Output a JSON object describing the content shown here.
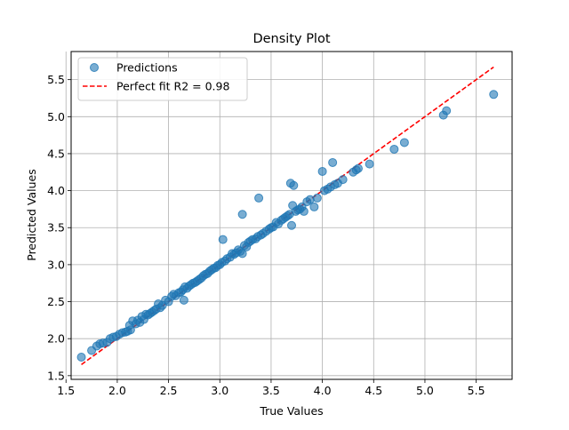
{
  "chart_data": {
    "type": "scatter",
    "title": "Density Plot",
    "xlabel": "True Values",
    "ylabel": "Predicted Values",
    "xlim": [
      1.55,
      5.85
    ],
    "ylim": [
      1.45,
      5.88
    ],
    "grid": true,
    "legend_placement": "top-left",
    "xticks": [
      "1.5",
      "2.0",
      "2.5",
      "3.0",
      "3.5",
      "4.0",
      "4.5",
      "5.0",
      "5.5"
    ],
    "yticks": [
      "1.5",
      "2.0",
      "2.5",
      "3.0",
      "3.5",
      "4.0",
      "4.5",
      "5.0",
      "5.5"
    ],
    "series": [
      {
        "name": "Predictions",
        "kind": "scatter",
        "color": "#1f77b4",
        "x": [
          1.65,
          1.75,
          1.8,
          1.83,
          1.86,
          1.9,
          1.93,
          1.96,
          1.99,
          2.02,
          2.05,
          2.08,
          2.1,
          2.12,
          2.13,
          2.15,
          2.18,
          2.2,
          2.22,
          2.24,
          2.26,
          2.28,
          2.3,
          2.32,
          2.34,
          2.36,
          2.38,
          2.4,
          2.42,
          2.44,
          2.47,
          2.5,
          2.53,
          2.55,
          2.57,
          2.6,
          2.62,
          2.64,
          2.65,
          2.66,
          2.68,
          2.7,
          2.72,
          2.74,
          2.76,
          2.78,
          2.8,
          2.82,
          2.84,
          2.86,
          2.88,
          2.9,
          2.92,
          2.94,
          2.96,
          2.98,
          3.0,
          3.02,
          3.03,
          3.05,
          3.07,
          3.1,
          3.12,
          3.14,
          3.16,
          3.18,
          3.2,
          3.22,
          3.22,
          3.24,
          3.26,
          3.28,
          3.3,
          3.32,
          3.35,
          3.37,
          3.38,
          3.4,
          3.42,
          3.45,
          3.48,
          3.5,
          3.52,
          3.55,
          3.57,
          3.6,
          3.62,
          3.64,
          3.66,
          3.68,
          3.69,
          3.7,
          3.71,
          3.72,
          3.74,
          3.76,
          3.78,
          3.8,
          3.82,
          3.85,
          3.88,
          3.92,
          3.95,
          4.0,
          4.02,
          4.05,
          4.08,
          4.1,
          4.12,
          4.15,
          4.2,
          4.3,
          4.33,
          4.35,
          4.46,
          4.7,
          4.8,
          5.18,
          5.21,
          5.67
        ],
        "y": [
          1.75,
          1.84,
          1.9,
          1.93,
          1.94,
          1.95,
          2.0,
          2.02,
          2.03,
          2.06,
          2.08,
          2.09,
          2.1,
          2.18,
          2.12,
          2.24,
          2.2,
          2.25,
          2.22,
          2.3,
          2.26,
          2.33,
          2.32,
          2.34,
          2.36,
          2.38,
          2.4,
          2.47,
          2.42,
          2.45,
          2.52,
          2.5,
          2.57,
          2.6,
          2.58,
          2.62,
          2.63,
          2.66,
          2.52,
          2.7,
          2.68,
          2.71,
          2.73,
          2.75,
          2.76,
          2.78,
          2.8,
          2.82,
          2.85,
          2.87,
          2.88,
          2.91,
          2.93,
          2.95,
          2.96,
          2.99,
          3.0,
          3.03,
          3.34,
          3.05,
          3.08,
          3.1,
          3.15,
          3.14,
          3.16,
          3.2,
          3.18,
          3.68,
          3.15,
          3.26,
          3.24,
          3.3,
          3.32,
          3.34,
          3.35,
          3.38,
          3.9,
          3.4,
          3.42,
          3.45,
          3.48,
          3.5,
          3.51,
          3.57,
          3.55,
          3.6,
          3.62,
          3.64,
          3.66,
          3.68,
          4.1,
          3.53,
          3.8,
          4.07,
          3.72,
          3.74,
          3.75,
          3.78,
          3.72,
          3.85,
          3.88,
          3.78,
          3.9,
          4.26,
          4.0,
          4.02,
          4.05,
          4.38,
          4.08,
          4.1,
          4.15,
          4.25,
          4.28,
          4.3,
          4.36,
          4.56,
          4.65,
          5.02,
          5.08,
          5.3
        ]
      },
      {
        "name": "Perfect fit R2 = 0.98",
        "kind": "line",
        "color": "#ff0000",
        "style": "dashed",
        "x": [
          1.65,
          5.67
        ],
        "y": [
          1.65,
          5.67
        ]
      }
    ]
  }
}
